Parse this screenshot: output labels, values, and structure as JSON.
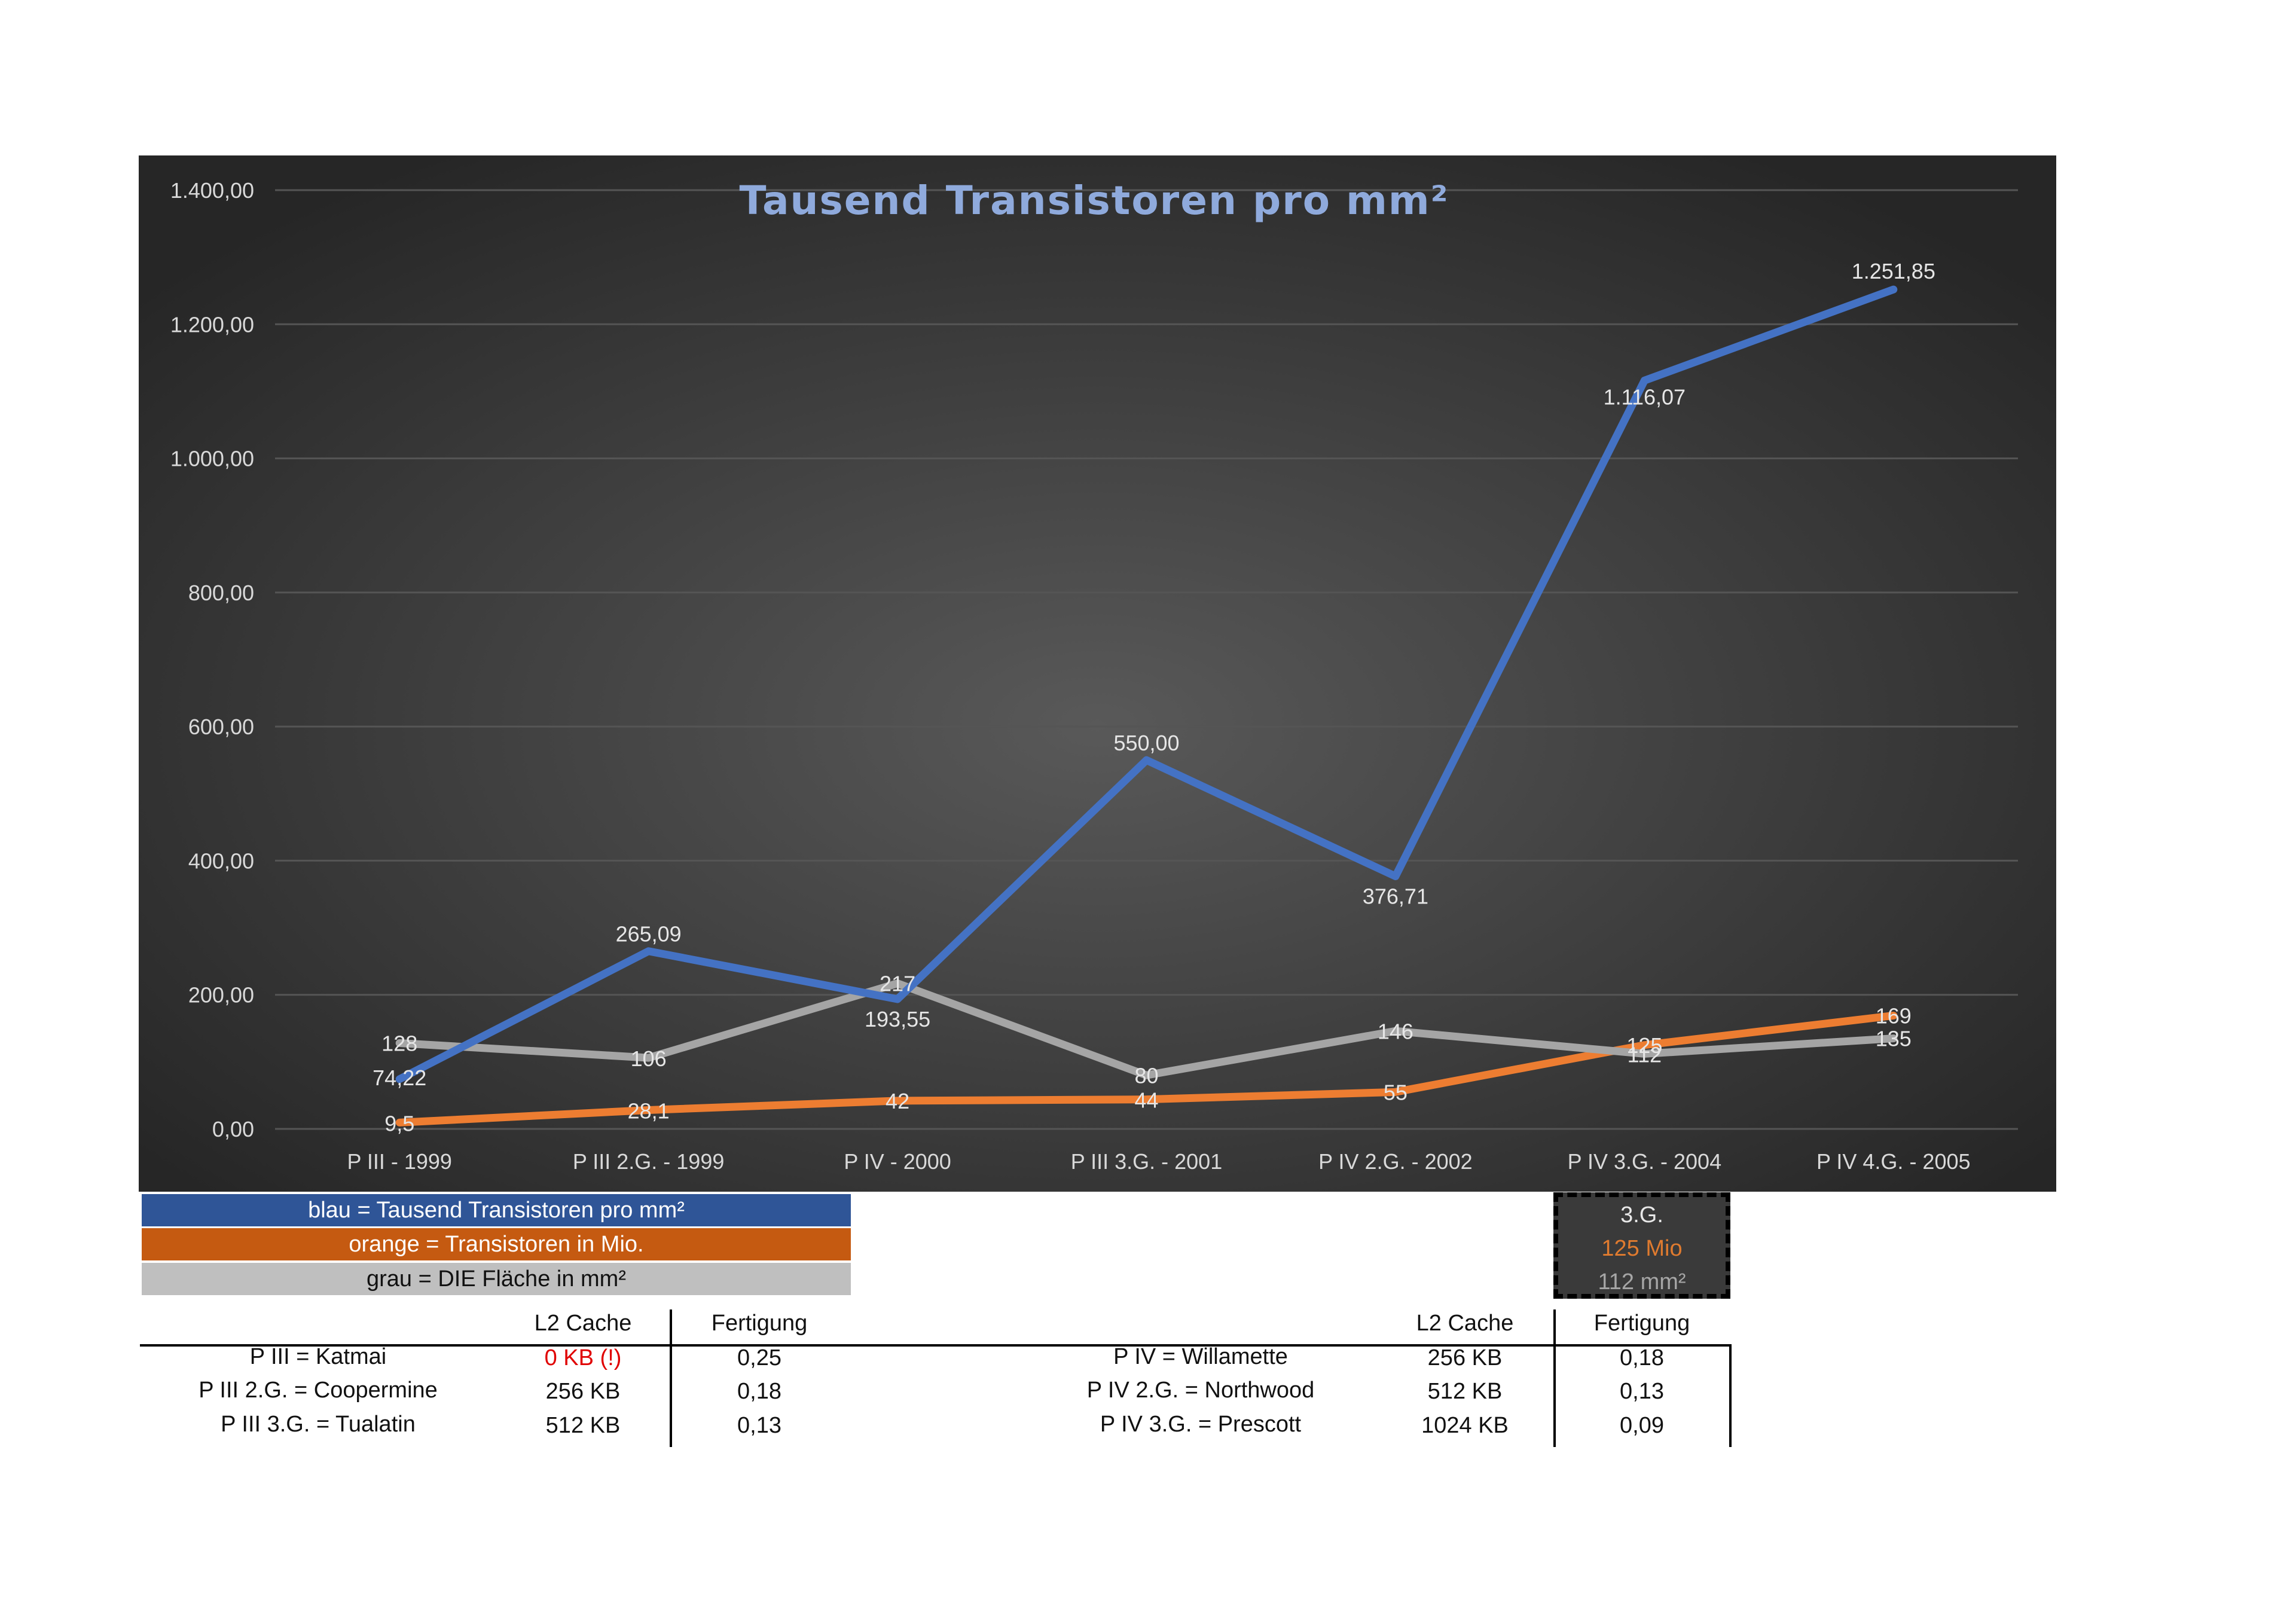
{
  "chart_data": {
    "type": "line",
    "title": "Tausend Transistoren pro mm²",
    "categories": [
      "P III - 1999",
      "P III 2.G. - 1999",
      "P IV - 2000",
      "P III 3.G. - 2001",
      "P IV 2.G. - 2002",
      "P IV 3.G. - 2004",
      "P IV 4.G. - 2005"
    ],
    "y_ticks": [
      "0,00",
      "200,00",
      "400,00",
      "600,00",
      "800,00",
      "1.000,00",
      "1.200,00",
      "1.400,00"
    ],
    "ylim": [
      0,
      1400
    ],
    "grid": true,
    "series": [
      {
        "key": "blue",
        "color": "#4472c4",
        "values": [
          74.22,
          265.09,
          193.55,
          550.0,
          376.71,
          1116.07,
          1251.85
        ],
        "labels": [
          "74,22",
          "265,09",
          "193,55",
          "550,00",
          "376,71",
          "1.116,07",
          "1.251,85"
        ]
      },
      {
        "key": "orange",
        "color": "#ed7d31",
        "values": [
          9.5,
          28.1,
          42,
          44,
          55,
          125,
          169
        ],
        "labels": [
          "9,5",
          "28,1",
          "42",
          "44",
          "55",
          "125",
          "169"
        ]
      },
      {
        "key": "grey",
        "color": "#a5a5a5",
        "values": [
          128,
          106,
          217,
          80,
          146,
          112,
          135
        ],
        "labels": [
          "128",
          "106",
          "217",
          "80",
          "146",
          "112",
          "135"
        ]
      }
    ]
  },
  "legend": {
    "blue": "blau = Tausend Transistoren pro mm²",
    "orange": "orange = Transistoren in Mio.",
    "grey": "grau = DIE Fläche in mm²"
  },
  "side_box": {
    "gen": "3.G.",
    "transistors": "125 Mio",
    "area": "112 mm²"
  },
  "table": {
    "left": {
      "header_cache": "L2 Cache",
      "header_fab": "Fertigung",
      "rows": [
        {
          "name": "P III = Katmai",
          "cache": "0 KB (!)",
          "fab": "0,25"
        },
        {
          "name": "P III 2.G. = Coopermine",
          "cache": "256 KB",
          "fab": "0,18"
        },
        {
          "name": "P III 3.G. = Tualatin",
          "cache": "512 KB",
          "fab": "0,13"
        }
      ]
    },
    "right": {
      "header_cache": "L2 Cache",
      "header_fab": "Fertigung",
      "rows": [
        {
          "name": "P IV = Willamette",
          "cache": "256 KB",
          "fab": "0,18"
        },
        {
          "name": "P IV 2.G. = Northwood",
          "cache": "512 KB",
          "fab": "0,13"
        },
        {
          "name": "P IV 3.G. = Prescott",
          "cache": "1024 KB",
          "fab": "0,09"
        }
      ]
    }
  }
}
